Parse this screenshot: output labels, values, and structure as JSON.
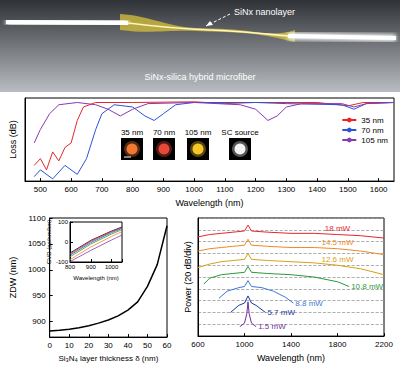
{
  "schematic": {
    "labels": [
      "SiNx nanolayer",
      "SiNx-silica hybrid microfiber"
    ]
  },
  "chart_data": [
    {
      "type": "line",
      "xlabel": "Wavelength (nm)",
      "ylabel": "Loss (dB)",
      "xlim": [
        450,
        1650
      ],
      "xticks": [
        500,
        600,
        700,
        800,
        900,
        1000,
        1100,
        1200,
        1300,
        1400,
        1500,
        1600
      ],
      "ylim": [
        -35,
        2
      ],
      "tick_labels": "x",
      "legend": "upper right",
      "series": [
        {
          "name": "35 nm",
          "color": "#e8262a",
          "x": [
            480,
            500,
            520,
            540,
            560,
            580,
            600,
            620,
            640,
            680,
            800,
            1000,
            1100,
            1200,
            1400,
            1500,
            1550,
            1650
          ],
          "values": [
            -28,
            -25,
            -30,
            -22,
            -26,
            -20,
            -18,
            -8,
            -2,
            0,
            0,
            0.3,
            -0.5,
            0,
            0,
            -1.5,
            0,
            0
          ]
        },
        {
          "name": "70 nm",
          "color": "#2a55d8",
          "x": [
            480,
            500,
            540,
            580,
            620,
            650,
            680,
            700,
            740,
            800,
            840,
            870,
            900,
            940,
            1000,
            1200,
            1300,
            1480,
            1520,
            1560,
            1650
          ],
          "values": [
            -33,
            -30,
            -34,
            -28,
            -32,
            -25,
            -12,
            -5,
            -1,
            -2,
            -6,
            -8,
            -5,
            -1,
            0,
            0,
            -0.5,
            -1,
            -3,
            -0.5,
            0
          ]
        },
        {
          "name": "105 nm",
          "color": "#8a3ab0",
          "x": [
            480,
            500,
            530,
            560,
            620,
            680,
            720,
            760,
            800,
            850,
            1000,
            1150,
            1200,
            1240,
            1270,
            1300,
            1350,
            1480,
            1520,
            1560,
            1650
          ],
          "values": [
            -18,
            -12,
            -5,
            -1,
            0,
            -1,
            -3,
            -6,
            -3,
            -0.5,
            0,
            -1,
            -3,
            -8,
            -6,
            -2,
            -0.5,
            -0.5,
            -2,
            -0.5,
            0
          ]
        }
      ],
      "spot_images": [
        {
          "label": "35 nm",
          "color": "#f07830"
        },
        {
          "label": "70 nm",
          "color": "#e84838"
        },
        {
          "label": "105 nm",
          "color": "#f5c72a"
        },
        {
          "label": "SC source",
          "color": "#f2f2f2"
        }
      ]
    },
    {
      "type": "line",
      "xlabel": "Si₃N₄ layer thickness δ (nm)",
      "ylabel": "ZDW (nm)",
      "xlim": [
        0,
        60
      ],
      "xticks": [
        0,
        10,
        20,
        30,
        40,
        50,
        60
      ],
      "ylim": [
        870,
        1100
      ],
      "yticks": [
        900,
        950,
        1000,
        1050,
        1100
      ],
      "series": [
        {
          "color": "#000000",
          "x": [
            0,
            5,
            10,
            15,
            20,
            25,
            30,
            35,
            40,
            45,
            50,
            55,
            60
          ],
          "values": [
            882,
            883,
            885,
            888,
            892,
            897,
            903,
            911,
            922,
            938,
            968,
            1010,
            1085
          ]
        }
      ]
    },
    {
      "type": "line",
      "xlabel": "Wavelength (nm)",
      "ylabel": "GVD (ps/nm/km)",
      "xlim": [
        800,
        1050
      ],
      "xticks": [
        800,
        900,
        1000
      ],
      "ylim": [
        -100,
        100
      ],
      "yticks": [
        -100,
        0,
        100
      ],
      "series": [
        {
          "color": "#000000",
          "x": [
            800,
            900,
            1000,
            1050
          ],
          "values": [
            -55,
            8,
            55,
            75
          ]
        },
        {
          "color": "#e8262a",
          "x": [
            800,
            900,
            1000,
            1050
          ],
          "values": [
            -60,
            3,
            52,
            72
          ]
        },
        {
          "color": "#2a55d8",
          "x": [
            800,
            900,
            1000,
            1050
          ],
          "values": [
            -66,
            -3,
            47,
            68
          ]
        },
        {
          "color": "#2a9a3a",
          "x": [
            800,
            900,
            1000,
            1050
          ],
          "values": [
            -74,
            -10,
            40,
            62
          ]
        },
        {
          "color": "#f08a24",
          "x": [
            800,
            900,
            1000,
            1050
          ],
          "values": [
            -88,
            -25,
            28,
            52
          ]
        },
        {
          "color": "#8a3ab0",
          "x": [
            800,
            900,
            1000,
            1050
          ],
          "values": [
            -98,
            -42,
            10,
            35
          ]
        }
      ]
    },
    {
      "type": "line",
      "xlabel": "Wavelength (nm)",
      "ylabel": "Power (20 dB/div)",
      "xlim": [
        600,
        2200
      ],
      "xticks": [
        600,
        1000,
        1400,
        1800,
        2200
      ],
      "ylim": [
        0,
        10
      ],
      "yticks": [
        0,
        1,
        2,
        3,
        4,
        5,
        6,
        7,
        8,
        9,
        10
      ],
      "grid": true,
      "tick_labels": "x",
      "series": [
        {
          "name": "18 mW",
          "color": "#e8262a",
          "x": [
            600,
            700,
            800,
            900,
            1000,
            1030,
            1060,
            1200,
            1400,
            1600,
            1800,
            2000,
            2200
          ],
          "values": [
            8.4,
            8.6,
            8.7,
            8.8,
            8.9,
            9.4,
            8.9,
            8.8,
            8.7,
            8.7,
            8.6,
            8.5,
            8.3
          ]
        },
        {
          "name": "14.5 mW",
          "color": "#f08a24",
          "x": [
            600,
            700,
            800,
            900,
            1000,
            1030,
            1060,
            1200,
            1400,
            1600,
            1800,
            2000,
            2200
          ],
          "values": [
            7.2,
            7.4,
            7.5,
            7.6,
            7.7,
            8.2,
            7.7,
            7.6,
            7.5,
            7.5,
            7.4,
            7.2,
            6.9
          ]
        },
        {
          "name": "12.6 mW",
          "color": "#d9a018",
          "x": [
            600,
            700,
            800,
            900,
            1000,
            1030,
            1060,
            1200,
            1400,
            1600,
            1800,
            2000,
            2200
          ],
          "values": [
            5.8,
            6.1,
            6.3,
            6.4,
            6.5,
            7.0,
            6.5,
            6.4,
            6.3,
            6.2,
            6.0,
            5.7,
            5.2
          ]
        },
        {
          "name": "10.8 mW",
          "color": "#2a9a3a",
          "x": [
            650,
            700,
            800,
            900,
            1000,
            1030,
            1060,
            1200,
            1400,
            1600,
            1800,
            1900
          ],
          "values": [
            4.4,
            4.9,
            5.2,
            5.3,
            5.4,
            5.9,
            5.4,
            5.3,
            5.2,
            5.0,
            4.6,
            4.2
          ]
        },
        {
          "name": "8.8 mW",
          "color": "#3a7ad8",
          "x": [
            780,
            850,
            950,
            1000,
            1030,
            1060,
            1150,
            1250,
            1350,
            1420
          ],
          "values": [
            3.2,
            3.8,
            4.1,
            4.2,
            4.7,
            4.2,
            4.1,
            3.8,
            3.3,
            2.8
          ]
        },
        {
          "name": "5.7 mW",
          "color": "#1a3a9a",
          "x": [
            880,
            950,
            1000,
            1030,
            1060,
            1100,
            1180
          ],
          "values": [
            2.0,
            2.6,
            2.8,
            3.4,
            2.8,
            2.6,
            2.0
          ]
        },
        {
          "name": "1.5 mW",
          "color": "#7030a0",
          "x": [
            960,
            1000,
            1020,
            1030,
            1040,
            1060,
            1100
          ],
          "values": [
            0.8,
            1.1,
            1.9,
            2.9,
            1.9,
            1.1,
            0.8
          ]
        }
      ]
    }
  ]
}
